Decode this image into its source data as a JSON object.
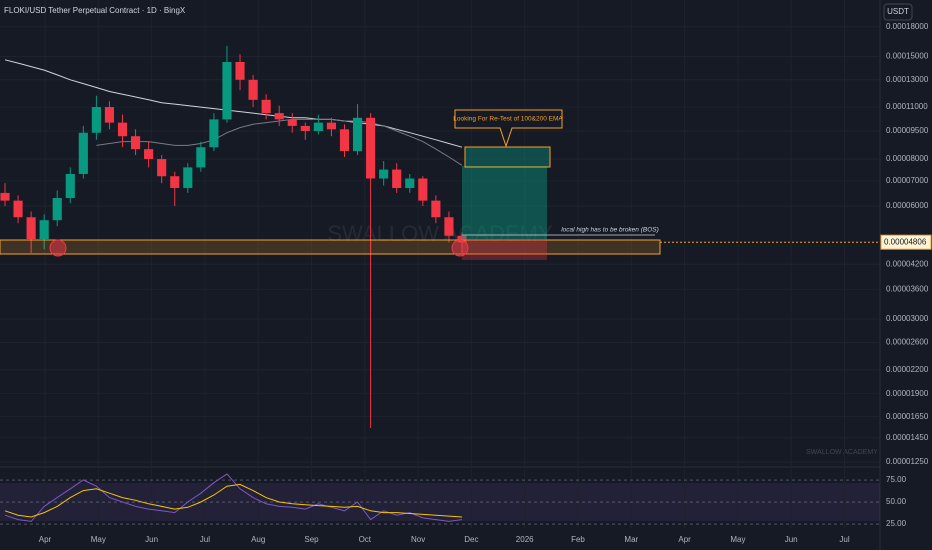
{
  "chart_data": {
    "type": "candlestick",
    "title": "FLOKI/USD Tether Perpetual Contract · 1D · BingX",
    "currency": "USDT",
    "last_price": {
      "value": 4.806e-05,
      "label": "0.00004806"
    },
    "watermark": "SWALLOW ACADEMY",
    "annotations": [
      "Looking For Re-Test of 100&200 EMA",
      "local high has to be broken (BOS)"
    ],
    "log_scale": true,
    "up_color": "#089981",
    "down_color": "#f23645",
    "ylim": [
      1.19e-05,
      0.000212
    ],
    "yticks": [
      {
        "value": 0.00018,
        "label": "0.00018000"
      },
      {
        "value": 0.00015,
        "label": "0.00015000"
      },
      {
        "value": 0.00013,
        "label": "0.00013000"
      },
      {
        "value": 0.00011,
        "label": "0.00011000"
      },
      {
        "value": 9.5e-05,
        "label": "0.00009500"
      },
      {
        "value": 8e-05,
        "label": "0.00008000"
      },
      {
        "value": 7e-05,
        "label": "0.00007000"
      },
      {
        "value": 6e-05,
        "label": "0.00006000"
      },
      {
        "value": 4.2e-05,
        "label": "0.00004200"
      },
      {
        "value": 3.6e-05,
        "label": "0.00003600"
      },
      {
        "value": 3e-05,
        "label": "0.00003000"
      },
      {
        "value": 2.6e-05,
        "label": "0.00002600"
      },
      {
        "value": 2.2e-05,
        "label": "0.00002200"
      },
      {
        "value": 1.9e-05,
        "label": "0.00001900"
      },
      {
        "value": 1.65e-05,
        "label": "0.00001650"
      },
      {
        "value": 1.45e-05,
        "label": "0.00001450"
      },
      {
        "value": 1.25e-05,
        "label": "0.00001250"
      }
    ],
    "xticks": [
      "Apr",
      "May",
      "Jun",
      "Jul",
      "Aug",
      "Sep",
      "Oct",
      "Nov",
      "Dec",
      "2026",
      "Feb",
      "Mar",
      "Apr",
      "May",
      "Jun",
      "Jul"
    ],
    "open": [
      6.5e-05,
      6.2e-05,
      5.6e-05,
      4.9e-05,
      5.5e-05,
      6.3e-05,
      7.3e-05,
      9.4e-05,
      0.00011,
      0.0001,
      9.2e-05,
      8.5e-05,
      8e-05,
      7.2e-05,
      6.7e-05,
      7.6e-05,
      8.6e-05,
      0.000102,
      0.000145,
      0.00013,
      0.000115,
      0.000106,
      0.000102,
      9.8e-05,
      9.5e-05,
      0.0001,
      9.6e-05,
      8.4e-05,
      0.000103,
      7.1e-05,
      7.5e-05,
      6.7e-05,
      7.1e-05,
      6.2e-05,
      5.6e-05,
      5e-05
    ],
    "high": [
      6.9e-05,
      6.4e-05,
      5.8e-05,
      5.7e-05,
      6.6e-05,
      7.6e-05,
      9.8e-05,
      0.000118,
      0.000114,
      0.000105,
      9.6e-05,
      8.9e-05,
      8.2e-05,
      7.4e-05,
      7.8e-05,
      8.9e-05,
      0.000106,
      0.00016,
      0.000152,
      0.000134,
      0.000119,
      0.000111,
      0.000106,
      0.0001,
      0.000105,
      0.000103,
      9.9e-05,
      0.000112,
      0.000106,
      7.9e-05,
      7.8e-05,
      7.3e-05,
      7.2e-05,
      6.4e-05,
      5.8e-05,
      5.1e-05
    ],
    "low": [
      6e-05,
      5.4e-05,
      4.5e-05,
      4.6e-05,
      5.3e-05,
      6.1e-05,
      7.1e-05,
      9e-05,
      9.6e-05,
      8.6e-05,
      8.2e-05,
      7.6e-05,
      6.9e-05,
      6e-05,
      6.5e-05,
      7.4e-05,
      8.4e-05,
      0.0001,
      0.000122,
      0.00011,
      0.000102,
      9.8e-05,
      9.4e-05,
      9e-05,
      9.3e-05,
      9.2e-05,
      8.1e-05,
      8.2e-05,
      1.54e-05,
      6.8e-05,
      6.5e-05,
      6.5e-05,
      6e-05,
      5.4e-05,
      4.8e-05,
      4.5e-05
    ],
    "close": [
      6.2e-05,
      5.6e-05,
      4.9e-05,
      5.5e-05,
      6.3e-05,
      7.3e-05,
      9.4e-05,
      0.00011,
      0.0001,
      9.2e-05,
      8.5e-05,
      8e-05,
      7.2e-05,
      6.7e-05,
      7.6e-05,
      8.6e-05,
      0.000102,
      0.000145,
      0.00013,
      0.000115,
      0.000106,
      0.000102,
      9.8e-05,
      9.5e-05,
      0.0001,
      9.6e-05,
      8.4e-05,
      0.000103,
      7.1e-05,
      7.5e-05,
      6.7e-05,
      7.1e-05,
      6.2e-05,
      5.6e-05,
      5e-05,
      4.8e-05
    ],
    "lines": [
      {
        "color": "#d1d4dc",
        "values": [
          0.000147,
          0.000144,
          0.000141,
          0.000138,
          0.000134,
          0.00013,
          0.000127,
          0.000124,
          0.000121,
          0.000119,
          0.000117,
          0.000115,
          0.000113,
          0.000112,
          0.000111,
          0.00011,
          0.000109,
          0.000108,
          0.000107,
          0.000106,
          0.000105,
          0.000104,
          0.000103,
          0.000103,
          0.000102,
          0.000102,
          0.000101,
          0.0001,
          9.9e-05,
          9.8e-05,
          9.6e-05,
          9.4e-05,
          9.2e-05,
          9e-05,
          8.8e-05,
          8.6e-05
        ]
      },
      {
        "color": "#787b86",
        "values": [
          null,
          null,
          null,
          null,
          null,
          null,
          null,
          8.7e-05,
          8.8e-05,
          8.9e-05,
          8.9e-05,
          8.9e-05,
          8.8e-05,
          8.7e-05,
          8.7e-05,
          8.8e-05,
          9e-05,
          9.4e-05,
          9.7e-05,
          9.9e-05,
          0.0001,
          0.000101,
          0.000102,
          0.000102,
          0.000102,
          0.000102,
          0.000101,
          0.000101,
          0.0001,
          9.8e-05,
          9.5e-05,
          9.2e-05,
          8.9e-05,
          8.5e-05,
          8.1e-05,
          7.7e-05
        ]
      }
    ],
    "rsi": {
      "ylim": [
        20.5,
        86.4
      ],
      "yticks": [
        {
          "value": 75,
          "label": "75.00"
        },
        {
          "value": 50,
          "label": "50.00"
        },
        {
          "value": 25,
          "label": "25.00"
        }
      ],
      "series": [
        {
          "color": "#7e57c2",
          "values": [
            35,
            30,
            28,
            45,
            55,
            65,
            75,
            68,
            55,
            50,
            45,
            42,
            40,
            38,
            50,
            60,
            72,
            82,
            65,
            55,
            48,
            45,
            44,
            42,
            48,
            44,
            40,
            50,
            30,
            40,
            35,
            38,
            32,
            30,
            28,
            30
          ]
        },
        {
          "color": "#f7c600",
          "values": [
            40,
            35,
            33,
            38,
            45,
            55,
            63,
            65,
            60,
            55,
            52,
            48,
            45,
            42,
            44,
            50,
            58,
            68,
            70,
            63,
            55,
            50,
            48,
            47,
            46,
            45,
            44,
            45,
            40,
            38,
            38,
            37,
            36,
            35,
            34,
            33
          ]
        }
      ]
    }
  }
}
